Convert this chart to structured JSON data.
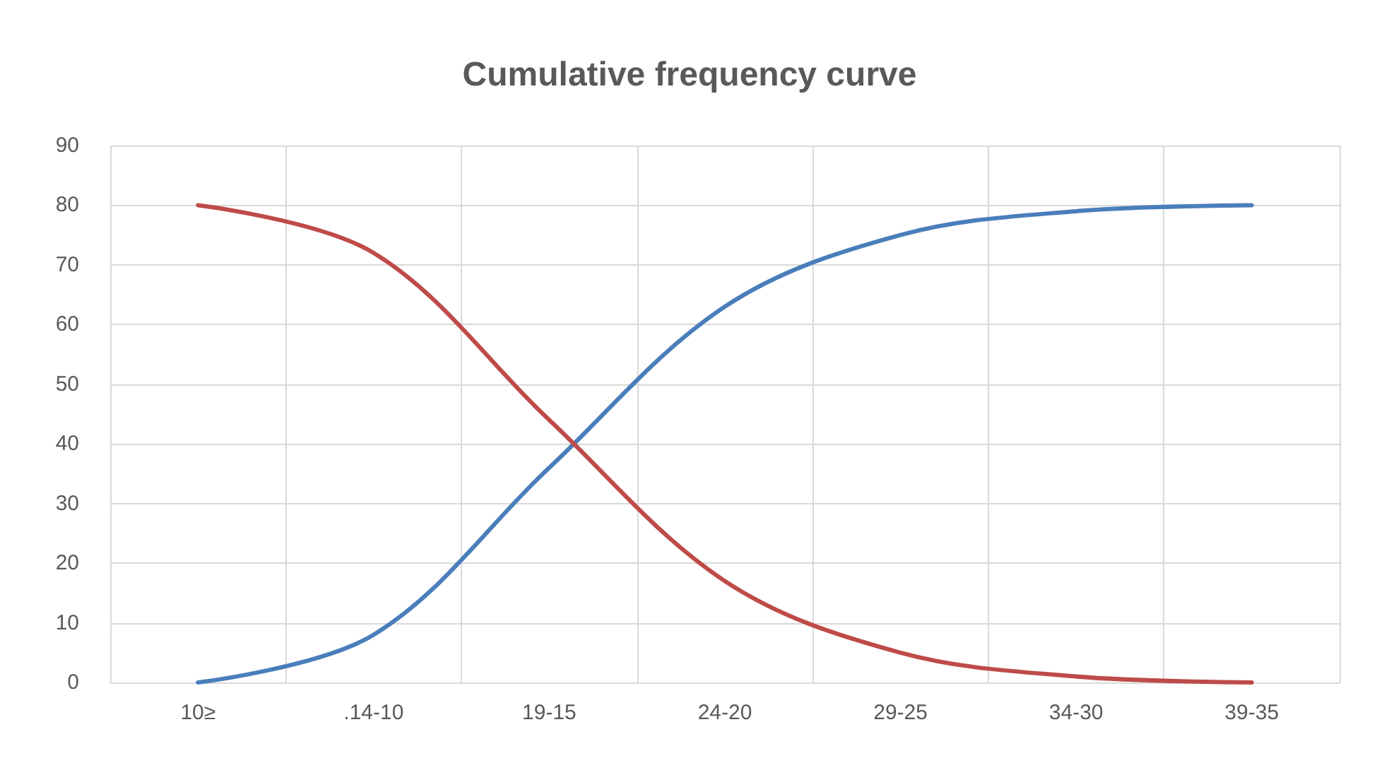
{
  "chart_data": {
    "type": "line",
    "title": "Cumulative frequency curve",
    "categories": [
      "10≥",
      ".14-10",
      "19-15",
      "24-20",
      "29-25",
      "34-30",
      "39-35"
    ],
    "series": [
      {
        "color": "#4a7ebb",
        "values": [
          0,
          8,
          36,
          63,
          75,
          79,
          80
        ]
      },
      {
        "color": "#be4b48",
        "values": [
          80,
          72,
          44,
          17,
          5,
          1,
          0
        ]
      }
    ],
    "ylim": [
      0,
      90
    ],
    "yticks": [
      0,
      10,
      20,
      30,
      40,
      50,
      60,
      70,
      80,
      90
    ],
    "grid": true,
    "marker": "none",
    "line_style": "solid"
  }
}
